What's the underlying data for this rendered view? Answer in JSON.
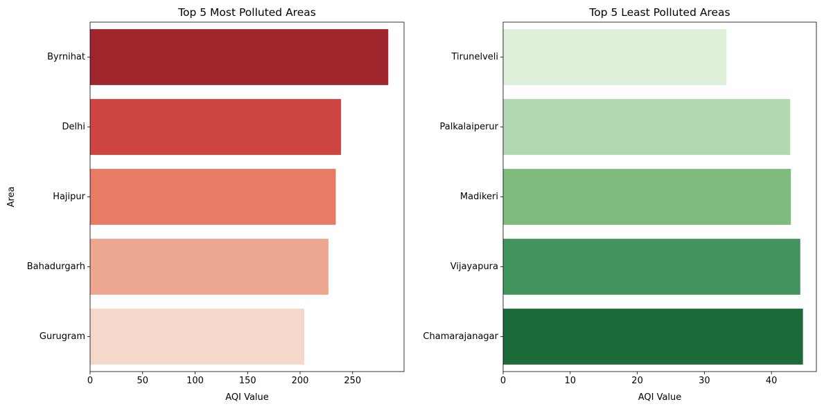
{
  "chart_data": [
    {
      "type": "bar",
      "orientation": "horizontal",
      "title": "Top 5 Most Polluted Areas",
      "xlabel": "AQI Value",
      "ylabel": "Area",
      "xlim": [
        0,
        299
      ],
      "xticks": [
        0,
        50,
        100,
        150,
        200,
        250
      ],
      "categories": [
        "Byrnihat",
        "Delhi",
        "Hajipur",
        "Bahadurgarh",
        "Gurugram"
      ],
      "values": [
        284,
        239,
        234,
        227,
        204
      ],
      "colors": [
        "#9e252b",
        "#cc4540",
        "#e77b64",
        "#eda690",
        "#f6d8ca"
      ],
      "grid": false
    },
    {
      "type": "bar",
      "orientation": "horizontal",
      "title": "Top 5 Least Polluted Areas",
      "xlabel": "AQI Value",
      "ylabel": "",
      "xlim": [
        0,
        46.7
      ],
      "xticks": [
        0,
        10,
        20,
        30,
        40
      ],
      "categories": [
        "Tirunelveli",
        "Palkalaiperur",
        "Madikeri",
        "Vijayapura",
        "Chamarajanagar"
      ],
      "values": [
        33.3,
        42.8,
        42.9,
        44.3,
        44.7
      ],
      "colors": [
        "#deefda",
        "#b3d8b1",
        "#7fbb7f",
        "#43945c",
        "#1c6b38"
      ],
      "grid": false
    }
  ]
}
